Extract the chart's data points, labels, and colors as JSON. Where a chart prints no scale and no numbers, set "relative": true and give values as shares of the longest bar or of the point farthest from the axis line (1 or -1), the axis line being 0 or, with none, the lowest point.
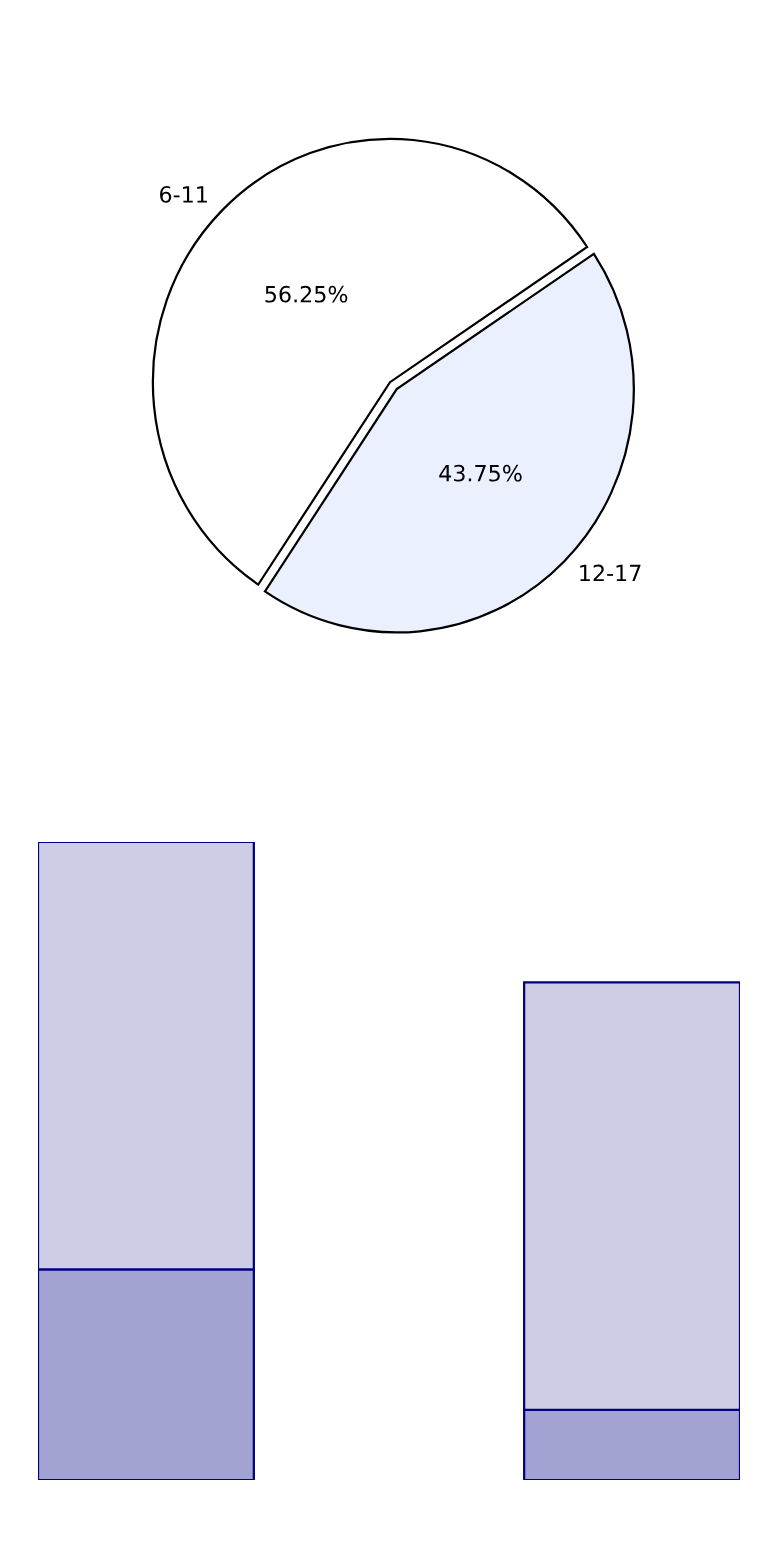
{
  "chart_data": [
    {
      "type": "pie",
      "categories": [
        "6-11",
        "12-17"
      ],
      "values": [
        56.25,
        43.75
      ],
      "colors": [
        "#ffffff",
        "#eaf0fe"
      ],
      "value_labels": [
        "56.25%",
        "43.75%"
      ]
    },
    {
      "type": "bar",
      "relative": true,
      "stacked": true,
      "categories": [
        null,
        null
      ],
      "series": [
        {
          "color": "#a3a3d3",
          "values": [
            0.33,
            0.11
          ]
        },
        {
          "color": "#cdcde5",
          "values": [
            0.67,
            0.67
          ]
        }
      ]
    }
  ]
}
